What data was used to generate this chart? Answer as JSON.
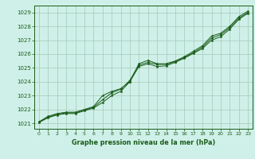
{
  "background_color": "#cff0e8",
  "plot_bg_color": "#cff0e8",
  "grid_color": "#aacfbf",
  "line_color": "#1a5c1a",
  "marker_color": "#1a5c1a",
  "xlabel": "Graphe pression niveau de la mer (hPa)",
  "xlabel_color": "#1a5c1a",
  "tick_color": "#1a5c1a",
  "ylim": [
    1020.6,
    1029.5
  ],
  "xlim": [
    -0.5,
    23.5
  ],
  "yticks": [
    1021,
    1022,
    1023,
    1024,
    1025,
    1026,
    1027,
    1028,
    1029
  ],
  "xticks": [
    0,
    1,
    2,
    3,
    4,
    5,
    6,
    7,
    8,
    9,
    10,
    11,
    12,
    13,
    14,
    15,
    16,
    17,
    18,
    19,
    20,
    21,
    22,
    23
  ],
  "series1": [
    1021.1,
    1021.5,
    1021.7,
    1021.8,
    1021.8,
    1022.0,
    1022.2,
    1023.0,
    1023.3,
    1023.5,
    1024.0,
    1025.3,
    1025.55,
    1025.3,
    1025.3,
    1025.5,
    1025.8,
    1026.2,
    1026.6,
    1027.3,
    1027.5,
    1028.0,
    1028.7,
    1029.1
  ],
  "series2": [
    1021.1,
    1021.45,
    1021.65,
    1021.75,
    1021.75,
    1021.95,
    1022.15,
    1022.7,
    1023.2,
    1023.45,
    1024.1,
    1025.2,
    1025.4,
    1025.25,
    1025.25,
    1025.45,
    1025.75,
    1026.1,
    1026.5,
    1027.15,
    1027.4,
    1027.9,
    1028.6,
    1029.0
  ],
  "series3": [
    1021.05,
    1021.4,
    1021.6,
    1021.7,
    1021.7,
    1021.9,
    1022.1,
    1022.5,
    1023.0,
    1023.3,
    1024.0,
    1025.1,
    1025.3,
    1025.1,
    1025.15,
    1025.4,
    1025.7,
    1026.05,
    1026.4,
    1027.0,
    1027.25,
    1027.8,
    1028.5,
    1028.95
  ]
}
